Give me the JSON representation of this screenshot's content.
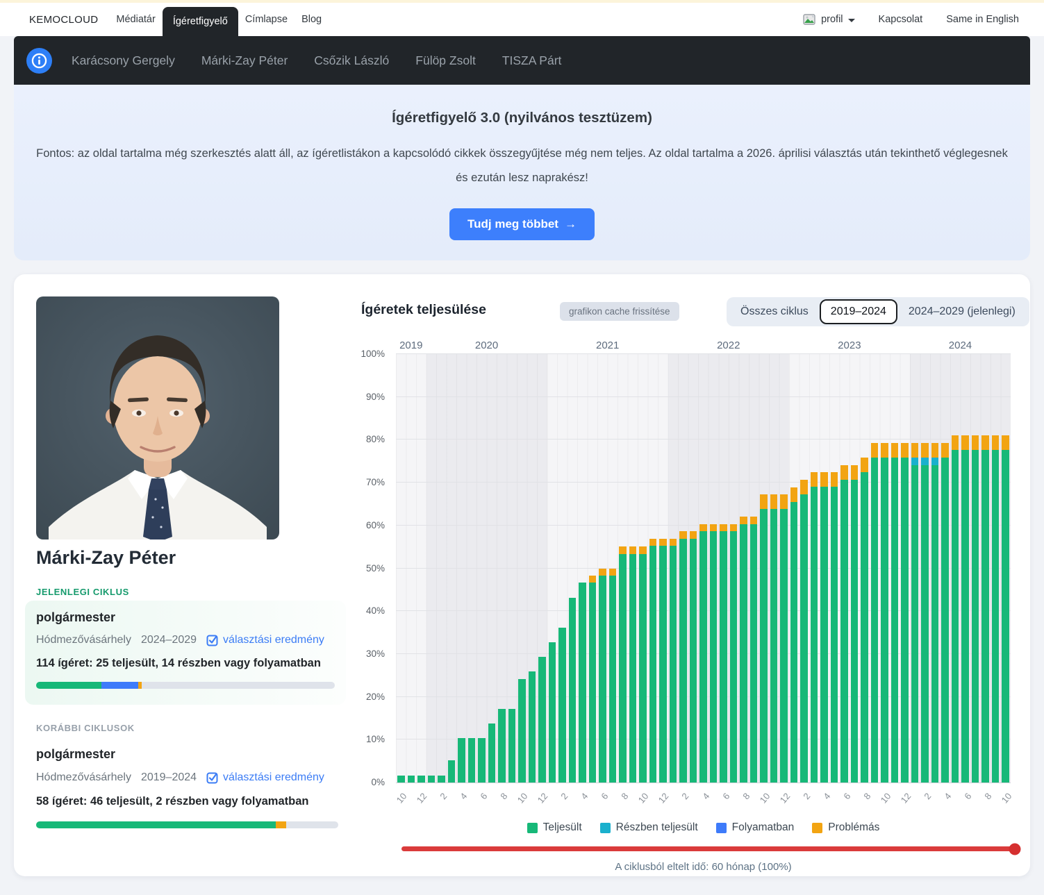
{
  "colors": {
    "green": "#17b878",
    "cyan": "#1ab0cd",
    "blue": "#3e7bfa",
    "orange": "#f2a412",
    "red": "#da3b3b",
    "accent": "#3d7ffc"
  },
  "topbar": {
    "brand": "KEMOCLOUD",
    "items": [
      "Médiatár",
      "Ígéretfigyelő",
      "Címlapse",
      "Blog"
    ],
    "active": "Ígéretfigyelő",
    "profile_label": "profil",
    "right_items": [
      "Kapcsolat",
      "Same in English"
    ]
  },
  "subnav": {
    "items": [
      "Karácsony Gergely",
      "Márki-Zay Péter",
      "Csőzik László",
      "Fülöp Zsolt",
      "TISZA Párt"
    ]
  },
  "hero": {
    "title": "Ígéretfigyelő 3.0 (nyilvános tesztüzem)",
    "body": "Fontos: az oldal tartalma még szerkesztés alatt áll, az ígéretlistákon a kapcsolódó cikkek összegyűjtése még nem teljes. Az oldal tartalma a 2026. áprilisi választás után tekinthető véglegesnek és ezután lesz naprakész!",
    "cta": "Tudj meg többet",
    "cta_arrow": "→"
  },
  "profile": {
    "name": "Márki-Zay Péter",
    "current_label": "JELENLEGI CIKLUS",
    "previous_label": "KORÁBBI CIKLUSOK",
    "current": {
      "position": "polgármester",
      "city": "Hódmezővásárhely",
      "term": "2024–2029",
      "link": "választási eredmény",
      "summary": "114 ígéret: 25 teljesült, 14 részben vagy folyamatban",
      "segments": [
        {
          "key": "green",
          "pct": 21.9
        },
        {
          "key": "blue",
          "pct": 12.3
        },
        {
          "key": "orange",
          "pct": 1.1
        }
      ]
    },
    "previous": {
      "position": "polgármester",
      "city": "Hódmezővásárhely",
      "term": "2019–2024",
      "link": "választási eredmény",
      "summary": "58 ígéret: 46 teljesült, 2 részben vagy folyamatban",
      "segments": [
        {
          "key": "green",
          "pct": 79.3
        },
        {
          "key": "orange",
          "pct": 3.4
        }
      ]
    }
  },
  "chart_header": {
    "title": "Ígéretek teljesülése",
    "cache_button": "grafikon cache frissítése",
    "tabs": [
      "Összes ciklus",
      "2019–2024",
      "2024–2029 (jelenlegi)"
    ],
    "active_tab": "2019–2024"
  },
  "chart_data": {
    "type": "bar",
    "stacked": true,
    "title": "Ígéretek teljesülése",
    "ylim": [
      0,
      100
    ],
    "yticks": [
      0,
      10,
      20,
      30,
      40,
      50,
      60,
      70,
      80,
      90,
      100
    ],
    "ytick_suffix": "%",
    "grid": true,
    "legend_position": "bottom",
    "year_groups": [
      {
        "year": "2019",
        "months": 3
      },
      {
        "year": "2020",
        "months": 12
      },
      {
        "year": "2021",
        "months": 12
      },
      {
        "year": "2022",
        "months": 12
      },
      {
        "year": "2023",
        "months": 12
      },
      {
        "year": "2024",
        "months": 10
      }
    ],
    "x_months": [
      "2019-10",
      "2019-11",
      "2019-12",
      "2020-1",
      "2020-2",
      "2020-3",
      "2020-4",
      "2020-5",
      "2020-6",
      "2020-7",
      "2020-8",
      "2020-9",
      "2020-10",
      "2020-11",
      "2020-12",
      "2021-1",
      "2021-2",
      "2021-3",
      "2021-4",
      "2021-5",
      "2021-6",
      "2021-7",
      "2021-8",
      "2021-9",
      "2021-10",
      "2021-11",
      "2021-12",
      "2022-1",
      "2022-2",
      "2022-3",
      "2022-4",
      "2022-5",
      "2022-6",
      "2022-7",
      "2022-8",
      "2022-9",
      "2022-10",
      "2022-11",
      "2022-12",
      "2023-1",
      "2023-2",
      "2023-3",
      "2023-4",
      "2023-5",
      "2023-6",
      "2023-7",
      "2023-8",
      "2023-9",
      "2023-10",
      "2023-11",
      "2023-12",
      "2024-1",
      "2024-2",
      "2024-3",
      "2024-4",
      "2024-5",
      "2024-6",
      "2024-7",
      "2024-8",
      "2024-9",
      "2024-10"
    ],
    "tick_every": 2,
    "legend": [
      {
        "label": "Teljesült",
        "color": "#17b878"
      },
      {
        "label": "Részben teljesült",
        "color": "#1ab0cd"
      },
      {
        "label": "Folyamatban",
        "color": "#3e7bfa"
      },
      {
        "label": "Problémás",
        "color": "#f2a412"
      }
    ],
    "series": [
      {
        "name": "Teljesült",
        "color": "#17b878",
        "values": [
          1.7,
          1.7,
          1.7,
          1.7,
          1.7,
          5.2,
          10.3,
          10.3,
          10.3,
          13.8,
          17.2,
          17.2,
          24.1,
          25.9,
          29.3,
          32.8,
          36.2,
          43.1,
          46.6,
          46.6,
          48.3,
          48.3,
          53.4,
          53.4,
          53.4,
          55.2,
          55.2,
          55.2,
          56.9,
          56.9,
          58.6,
          58.6,
          58.6,
          58.6,
          60.3,
          60.3,
          63.8,
          63.8,
          63.8,
          65.5,
          67.2,
          69,
          69,
          69,
          70.7,
          70.7,
          72.4,
          75.9,
          75.9,
          75.9,
          75.9,
          74.1,
          74.1,
          74.1,
          75.9,
          77.6,
          77.6,
          77.6,
          77.6,
          77.6,
          77.6
        ]
      },
      {
        "name": "Részben teljesült",
        "color": "#1ab0cd",
        "values": [
          0,
          0,
          0,
          0,
          0,
          0,
          0,
          0,
          0,
          0,
          0,
          0,
          0,
          0,
          0,
          0,
          0,
          0,
          0,
          0,
          0,
          0,
          0,
          0,
          0,
          0,
          0,
          0,
          0,
          0,
          0,
          0,
          0,
          0,
          0,
          0,
          0,
          0,
          0,
          0,
          0,
          0,
          0,
          0,
          0,
          0,
          0,
          0,
          0,
          0,
          0,
          1.7,
          1.7,
          1.7,
          0,
          0,
          0,
          0,
          0,
          0,
          0
        ]
      },
      {
        "name": "Folyamatban",
        "color": "#3e7bfa",
        "values": [
          0,
          0,
          0,
          0,
          0,
          0,
          0,
          0,
          0,
          0,
          0,
          0,
          0,
          0,
          0,
          0,
          0,
          0,
          0,
          0,
          0,
          0,
          0,
          0,
          0,
          0,
          0,
          0,
          0,
          0,
          0,
          0,
          0,
          0,
          0,
          0,
          0,
          0,
          0,
          0,
          0,
          0,
          0,
          0,
          0,
          0,
          0,
          0,
          0,
          0,
          0,
          0,
          0,
          0,
          0,
          0,
          0,
          0,
          0,
          0,
          0
        ]
      },
      {
        "name": "Problémás",
        "color": "#f2a412",
        "values": [
          0,
          0,
          0,
          0,
          0,
          0,
          0,
          0,
          0,
          0,
          0,
          0,
          0,
          0,
          0,
          0,
          0,
          0,
          0,
          1.7,
          1.7,
          1.7,
          1.7,
          1.7,
          1.7,
          1.7,
          1.7,
          1.7,
          1.7,
          1.7,
          1.7,
          1.7,
          1.7,
          1.7,
          1.7,
          1.7,
          3.4,
          3.4,
          3.4,
          3.4,
          3.4,
          3.4,
          3.4,
          3.4,
          3.4,
          3.4,
          3.4,
          3.4,
          3.4,
          3.4,
          3.4,
          3.4,
          3.4,
          3.4,
          3.4,
          3.4,
          3.4,
          3.4,
          3.4,
          3.4,
          3.4
        ]
      }
    ]
  },
  "footer": {
    "elapsed_text": "A ciklusból eltelt idő: 60 hónap (100%)",
    "slider_percent": 100
  }
}
